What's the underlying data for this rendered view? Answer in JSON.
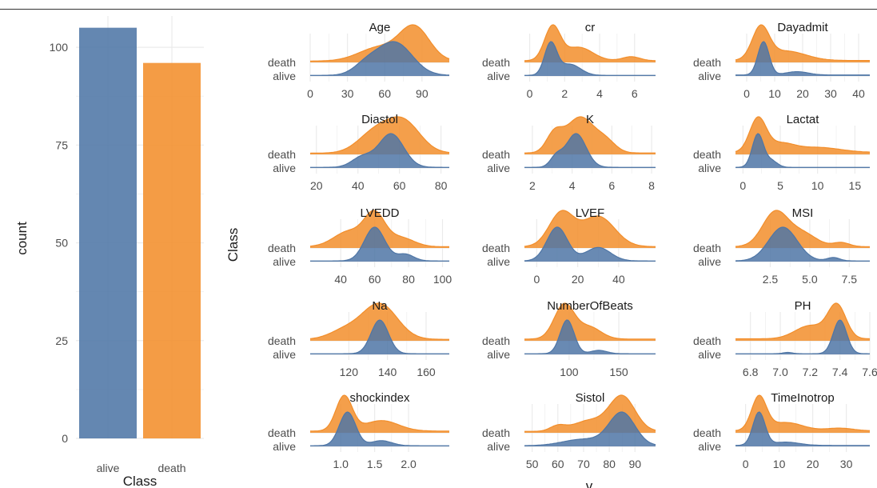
{
  "colors": {
    "alive": "#4f76a6",
    "death": "#f28e2b",
    "grid": "#ebebeb",
    "text": "#4d4d4d"
  },
  "bar_chart": {
    "xlabel": "Class",
    "ylabel": "count",
    "categories": [
      "alive",
      "death"
    ],
    "values": [
      105,
      96
    ],
    "ylim": [
      0,
      108
    ],
    "yticks": [
      0,
      25,
      50,
      75,
      100
    ]
  },
  "ridge_chart": {
    "ylabel": "Class",
    "xlabel": "v",
    "class_labels": [
      "death",
      "alive"
    ]
  },
  "chart_data": [
    {
      "type": "bar",
      "categories": [
        "alive",
        "death"
      ],
      "values": [
        105,
        96
      ],
      "title": "",
      "xlabel": "Class",
      "ylabel": "count",
      "ylim": [
        0,
        108
      ],
      "grid": true
    },
    {
      "type": "area",
      "subtype": "ridgeline-faceted",
      "title": "",
      "xlabel": "v",
      "ylabel": "Class",
      "series_names": [
        "death",
        "alive"
      ],
      "panels": [
        {
          "title": "Age",
          "xlim": [
            0,
            112
          ],
          "ticks": [
            0,
            30,
            60,
            90
          ],
          "tick_labels": [
            "0",
            "30",
            "60",
            "90"
          ],
          "death": {
            "peaks": [
              [
                84,
                1.0,
                12
              ],
              [
                55,
                0.4,
                16
              ]
            ],
            "tail": 0.04
          },
          "alive": {
            "peaks": [
              [
                68,
                1.0,
                14
              ],
              [
                45,
                0.3,
                10
              ]
            ],
            "tail": 0.02
          }
        },
        {
          "title": "cr",
          "xlim": [
            -0.3,
            7.2
          ],
          "ticks": [
            0,
            2,
            4,
            6
          ],
          "tick_labels": [
            "0",
            "2",
            "4",
            "6"
          ],
          "death": {
            "peaks": [
              [
                1.3,
                1.0,
                0.45
              ],
              [
                2.8,
                0.4,
                0.8
              ],
              [
                5.8,
                0.12,
                0.5
              ]
            ],
            "tail": 0.05
          },
          "alive": {
            "peaks": [
              [
                1.2,
                1.0,
                0.35
              ],
              [
                2.3,
                0.35,
                0.6
              ]
            ],
            "tail": 0.02
          }
        },
        {
          "title": "Dayadmit",
          "xlim": [
            -4,
            44
          ],
          "ticks": [
            0,
            10,
            20,
            30,
            40
          ],
          "tick_labels": [
            "0",
            "10",
            "20",
            "30",
            "40"
          ],
          "death": {
            "peaks": [
              [
                5,
                1.0,
                3
              ],
              [
                14,
                0.3,
                7
              ]
            ],
            "tail": 0.06
          },
          "alive": {
            "peaks": [
              [
                6,
                1.0,
                2
              ],
              [
                18,
                0.1,
                4
              ]
            ],
            "tail": 0.03
          }
        },
        {
          "title": "Diastol",
          "xlim": [
            17,
            84
          ],
          "ticks": [
            20,
            40,
            60,
            80
          ],
          "tick_labels": [
            "20",
            "40",
            "60",
            "80"
          ],
          "death": {
            "peaks": [
              [
                62,
                1.0,
                8
              ],
              [
                48,
                0.65,
                8
              ]
            ],
            "tail": 0.04
          },
          "alive": {
            "peaks": [
              [
                56,
                1.0,
                6
              ],
              [
                42,
                0.3,
                5
              ]
            ],
            "tail": 0.02
          }
        },
        {
          "title": "K",
          "xlim": [
            1.6,
            8.2
          ],
          "ticks": [
            2,
            4,
            6,
            8
          ],
          "tick_labels": [
            "2",
            "4",
            "6",
            "8"
          ],
          "death": {
            "peaks": [
              [
                4.4,
                1.0,
                0.7
              ],
              [
                3.1,
                0.5,
                0.4
              ],
              [
                5.7,
                0.3,
                0.5
              ]
            ],
            "tail": 0.04
          },
          "alive": {
            "peaks": [
              [
                4.2,
                1.0,
                0.5
              ],
              [
                3.2,
                0.3,
                0.3
              ]
            ],
            "tail": 0.02
          }
        },
        {
          "title": "Lactat",
          "xlim": [
            -1,
            17
          ],
          "ticks": [
            0,
            5,
            10,
            15
          ],
          "tick_labels": [
            "0",
            "5",
            "10",
            "15"
          ],
          "death": {
            "peaks": [
              [
                2,
                1.0,
                1.1
              ],
              [
                5,
                0.25,
                1.8
              ],
              [
                10,
                0.15,
                3
              ]
            ],
            "tail": 0.06
          },
          "alive": {
            "peaks": [
              [
                2,
                1.0,
                0.75
              ],
              [
                3.8,
                0.2,
                0.8
              ]
            ],
            "tail": 0.02
          }
        },
        {
          "title": "LVEDD",
          "xlim": [
            22,
            104
          ],
          "ticks": [
            40,
            60,
            80,
            100
          ],
          "tick_labels": [
            "40",
            "60",
            "80",
            "100"
          ],
          "death": {
            "peaks": [
              [
                60,
                1.0,
                6
              ],
              [
                45,
                0.5,
                9
              ],
              [
                75,
                0.3,
                8
              ]
            ],
            "tail": 0.04
          },
          "alive": {
            "peaks": [
              [
                60,
                1.0,
                6
              ],
              [
                78,
                0.2,
                5
              ]
            ],
            "tail": 0.02
          }
        },
        {
          "title": "LVEF",
          "xlim": [
            -6,
            58
          ],
          "ticks": [
            0,
            20,
            40
          ],
          "tick_labels": [
            "0",
            "20",
            "40"
          ],
          "death": {
            "peaks": [
              [
                12,
                1.0,
                6
              ],
              [
                30,
                0.9,
                8
              ]
            ],
            "tail": 0.04
          },
          "alive": {
            "peaks": [
              [
                10,
                1.0,
                5
              ],
              [
                30,
                0.4,
                6
              ]
            ],
            "tail": 0.02
          }
        },
        {
          "title": "MSI",
          "xlim": [
            0.3,
            8.8
          ],
          "ticks": [
            2.5,
            5.0,
            7.5
          ],
          "tick_labels": [
            "2.5",
            "5.0",
            "7.5"
          ],
          "death": {
            "peaks": [
              [
                2.8,
                1.0,
                0.8
              ],
              [
                4.5,
                0.4,
                0.9
              ],
              [
                7,
                0.12,
                0.5
              ]
            ],
            "tail": 0.04
          },
          "alive": {
            "peaks": [
              [
                3.3,
                1.0,
                0.9
              ],
              [
                6.5,
                0.1,
                0.4
              ]
            ],
            "tail": 0.02
          }
        },
        {
          "title": "Na",
          "xlim": [
            100,
            172
          ],
          "ticks": [
            120,
            140,
            160
          ],
          "tick_labels": [
            "120",
            "140",
            "160"
          ],
          "death": {
            "peaks": [
              [
                136,
                1.0,
                9
              ],
              [
                118,
                0.25,
                8
              ]
            ],
            "tail": 0.04
          },
          "alive": {
            "peaks": [
              [
                136,
                1.0,
                4.5
              ]
            ],
            "tail": 0.02
          }
        },
        {
          "title": "NumberOfBeats",
          "xlim": [
            55,
            187
          ],
          "ticks": [
            100,
            150
          ],
          "tick_labels": [
            "100",
            "150"
          ],
          "death": {
            "peaks": [
              [
                95,
                1.0,
                10
              ],
              [
                120,
                0.35,
                12
              ]
            ],
            "tail": 0.05
          },
          "alive": {
            "peaks": [
              [
                98,
                1.0,
                7
              ],
              [
                130,
                0.1,
                8
              ]
            ],
            "tail": 0.02
          }
        },
        {
          "title": "PH",
          "xlim": [
            6.7,
            7.6
          ],
          "ticks": [
            6.8,
            7.0,
            7.2,
            7.4,
            7.6
          ],
          "tick_labels": [
            "6.8",
            "7.0",
            "7.2",
            "7.4",
            "7.6"
          ],
          "death": {
            "peaks": [
              [
                7.38,
                1.0,
                0.06
              ],
              [
                7.2,
                0.4,
                0.1
              ]
            ],
            "tail": 0.06
          },
          "alive": {
            "peaks": [
              [
                7.4,
                1.0,
                0.045
              ],
              [
                7.05,
                0.04,
                0.03
              ]
            ],
            "tail": 0.02
          }
        },
        {
          "title": "shockindex",
          "xlim": [
            0.55,
            2.6
          ],
          "ticks": [
            1.0,
            1.5,
            2.0
          ],
          "tick_labels": [
            "1.0",
            "1.5",
            "2.0"
          ],
          "death": {
            "peaks": [
              [
                1.05,
                1.0,
                0.12
              ],
              [
                1.6,
                0.3,
                0.25
              ]
            ],
            "tail": 0.05
          },
          "alive": {
            "peaks": [
              [
                1.1,
                1.0,
                0.12
              ],
              [
                1.6,
                0.15,
                0.15
              ]
            ],
            "tail": 0.02
          }
        },
        {
          "title": "Sistol",
          "xlim": [
            47,
            98
          ],
          "ticks": [
            50,
            60,
            70,
            80,
            90
          ],
          "tick_labels": [
            "50",
            "60",
            "70",
            "80",
            "90"
          ],
          "death": {
            "peaks": [
              [
                85,
                1.0,
                5
              ],
              [
                72,
                0.3,
                6
              ],
              [
                60,
                0.15,
                3
              ]
            ],
            "tail": 0.04
          },
          "alive": {
            "peaks": [
              [
                85,
                1.0,
                5
              ],
              [
                70,
                0.2,
                8
              ]
            ],
            "tail": 0.02
          }
        },
        {
          "title": "TimeInotrop",
          "xlim": [
            -3,
            37
          ],
          "ticks": [
            0,
            10,
            20,
            30
          ],
          "tick_labels": [
            "0",
            "10",
            "20",
            "30"
          ],
          "death": {
            "peaks": [
              [
                4,
                1.0,
                2.2
              ],
              [
                12,
                0.25,
                5
              ],
              [
                28,
                0.08,
                4
              ]
            ],
            "tail": 0.06
          },
          "alive": {
            "peaks": [
              [
                4,
                1.0,
                1.8
              ],
              [
                12,
                0.1,
                4
              ]
            ],
            "tail": 0.03
          }
        }
      ]
    }
  ]
}
